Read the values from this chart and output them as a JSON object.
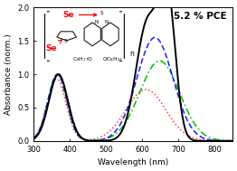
{
  "title": "5.2 % PCE",
  "xlabel": "Wavelength (nm)",
  "ylabel": "Absorbance (norm.)",
  "xlim": [
    300,
    850
  ],
  "ylim": [
    0.0,
    2.0
  ],
  "yticks": [
    0.0,
    0.5,
    1.0,
    1.5,
    2.0
  ],
  "xticks": [
    300,
    400,
    500,
    600,
    700,
    800
  ],
  "bg_color": "#ffffff",
  "curves": {
    "black": {
      "color": "#000000",
      "lw": 1.4
    },
    "blue": {
      "color": "#1a1aff",
      "lw": 1.1
    },
    "green": {
      "color": "#00bb00",
      "lw": 1.1
    },
    "red": {
      "color": "#ff3333",
      "lw": 1.1
    }
  },
  "black_peaks": [
    {
      "mu": 368,
      "sigma": 26,
      "amp": 1.0
    },
    {
      "mu": 615,
      "sigma": 32,
      "amp": 1.78
    },
    {
      "mu": 670,
      "sigma": 22,
      "amp": 2.0
    }
  ],
  "blue_peaks": [
    {
      "mu": 365,
      "sigma": 26,
      "amp": 1.0
    },
    {
      "mu": 635,
      "sigma": 50,
      "amp": 1.55
    }
  ],
  "green_peaks": [
    {
      "mu": 365,
      "sigma": 26,
      "amp": 1.0
    },
    {
      "mu": 648,
      "sigma": 55,
      "amp": 1.2
    }
  ],
  "red_peaks": [
    {
      "mu": 363,
      "sigma": 26,
      "amp": 0.93
    },
    {
      "mu": 610,
      "sigma": 55,
      "amp": 0.77
    }
  ],
  "se1_text": "Se",
  "se2_text": "Se",
  "struct_labels": [
    "C₈H₁₇O",
    "OC₈H₁₇"
  ],
  "struct_atoms": [
    "S",
    "N",
    "N"
  ],
  "n_label": "n"
}
